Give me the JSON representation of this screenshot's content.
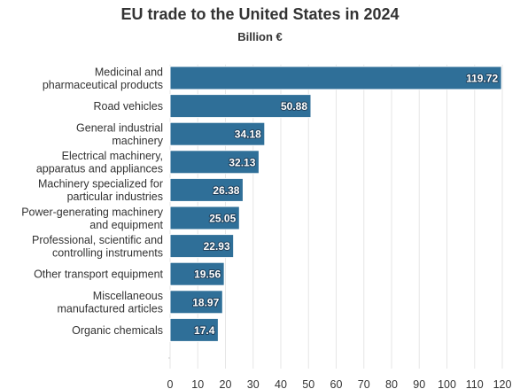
{
  "chart_data": {
    "type": "bar",
    "orientation": "horizontal",
    "title": "EU trade to the United States in 2024",
    "subtitle": "Billion €",
    "categories": [
      [
        "Medicinal and",
        "pharmaceutical products"
      ],
      [
        "Road vehicles"
      ],
      [
        "General industrial",
        "machinery"
      ],
      [
        "Electrical machinery,",
        "apparatus and appliances"
      ],
      [
        "Machinery specialized for",
        "particular industries"
      ],
      [
        "Power-generating machinery",
        "and equipment"
      ],
      [
        "Professional, scientific and",
        "controlling instruments"
      ],
      [
        "Other transport equipment"
      ],
      [
        "Miscellaneous",
        "manufactured articles"
      ],
      [
        "Organic chemicals"
      ]
    ],
    "values": [
      119.72,
      50.88,
      34.18,
      32.13,
      26.38,
      25.05,
      22.93,
      19.56,
      18.97,
      17.4
    ],
    "data_labels": [
      "119.72",
      "50.88",
      "34.18",
      "32.13",
      "26.38",
      "25.05",
      "22.93",
      "19.56",
      "18.97",
      "17.4"
    ],
    "xlim": [
      0,
      120
    ],
    "x_ticks": [
      0,
      10,
      20,
      30,
      40,
      50,
      60,
      70,
      80,
      90,
      100,
      110,
      120
    ],
    "grid": true,
    "legend": "none",
    "colors": {
      "bar": "#2f6f98",
      "bar_stroke": "#ffffff",
      "grid": "#e6e6e6",
      "text": "#333333"
    }
  }
}
